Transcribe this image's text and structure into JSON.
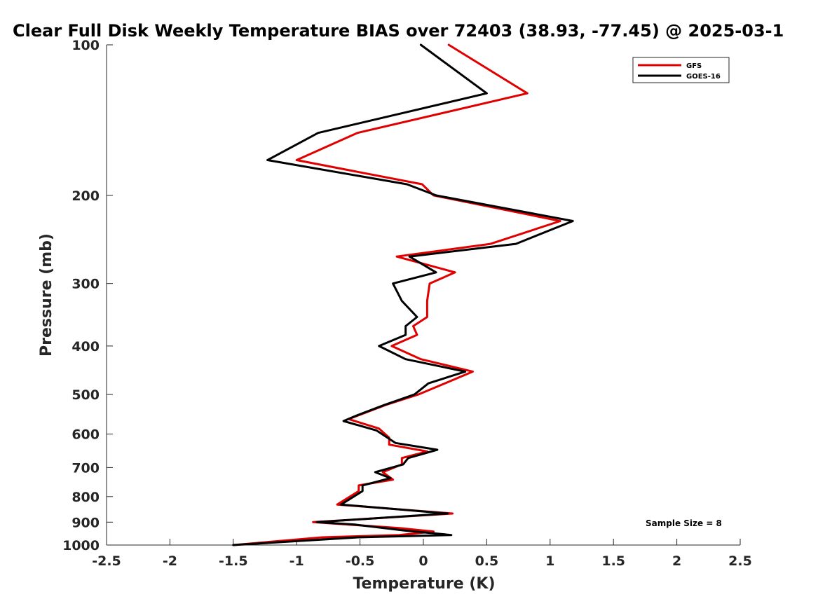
{
  "chart_data": {
    "type": "line",
    "title": "Clear Full Disk Weekly Temperature BIAS over 72403 (38.93, -77.45) @ 2025-03-1",
    "xlabel": "Temperature (K)",
    "ylabel": "Pressure (mb)",
    "xlim": [
      -2.5,
      2.5
    ],
    "ylim": [
      100,
      1000
    ],
    "y_scale": "log",
    "y_reversed": true,
    "x_ticks": [
      "-2.5",
      "-2",
      "-1.5",
      "-1",
      "-0.5",
      "0",
      "0.5",
      "1",
      "1.5",
      "2",
      "2.5"
    ],
    "y_ticks": [
      "100",
      "200",
      "300",
      "400",
      "500",
      "600",
      "700",
      "800",
      "900",
      "1000"
    ],
    "grid": false,
    "legend_position": "top-right",
    "annotation": "Sample Size = 8",
    "series": [
      {
        "name": "GFS",
        "color": "#e00000",
        "points": [
          [
            0.2,
            100
          ],
          [
            0.82,
            125
          ],
          [
            -0.52,
            150
          ],
          [
            -1.0,
            170
          ],
          [
            -0.01,
            190
          ],
          [
            0.08,
            200
          ],
          [
            1.08,
            225
          ],
          [
            0.53,
            250
          ],
          [
            -0.21,
            265
          ],
          [
            0.25,
            285
          ],
          [
            0.05,
            300
          ],
          [
            0.03,
            325
          ],
          [
            0.03,
            350
          ],
          [
            -0.08,
            365
          ],
          [
            -0.05,
            380
          ],
          [
            -0.25,
            400
          ],
          [
            -0.02,
            425
          ],
          [
            0.39,
            450
          ],
          [
            0.17,
            475
          ],
          [
            -0.04,
            500
          ],
          [
            -0.3,
            525
          ],
          [
            -0.59,
            560
          ],
          [
            -0.35,
            585
          ],
          [
            -0.27,
            610
          ],
          [
            -0.27,
            630
          ],
          [
            0.03,
            650
          ],
          [
            -0.17,
            670
          ],
          [
            -0.17,
            690
          ],
          [
            -0.32,
            715
          ],
          [
            -0.24,
            740
          ],
          [
            -0.51,
            760
          ],
          [
            -0.51,
            780
          ],
          [
            -0.68,
            830
          ],
          [
            0.23,
            865
          ],
          [
            -0.87,
            900
          ],
          [
            -0.19,
            925
          ],
          [
            0.08,
            940
          ],
          [
            -0.19,
            955
          ],
          [
            -0.8,
            965
          ],
          [
            -1.5,
            1000
          ]
        ]
      },
      {
        "name": "GOES-16",
        "color": "#000000",
        "points": [
          [
            -0.02,
            100
          ],
          [
            0.5,
            125
          ],
          [
            -0.83,
            150
          ],
          [
            -1.23,
            170
          ],
          [
            -0.13,
            190
          ],
          [
            0.1,
            200
          ],
          [
            1.18,
            225
          ],
          [
            0.73,
            250
          ],
          [
            -0.11,
            265
          ],
          [
            0.1,
            285
          ],
          [
            -0.24,
            300
          ],
          [
            -0.17,
            325
          ],
          [
            -0.05,
            350
          ],
          [
            -0.14,
            365
          ],
          [
            -0.14,
            380
          ],
          [
            -0.35,
            400
          ],
          [
            -0.14,
            425
          ],
          [
            0.33,
            450
          ],
          [
            0.04,
            475
          ],
          [
            -0.07,
            500
          ],
          [
            -0.31,
            525
          ],
          [
            -0.52,
            550
          ],
          [
            -0.63,
            565
          ],
          [
            -0.37,
            590
          ],
          [
            -0.22,
            625
          ],
          [
            0.11,
            645
          ],
          [
            -0.12,
            670
          ],
          [
            -0.16,
            690
          ],
          [
            -0.38,
            715
          ],
          [
            -0.26,
            735
          ],
          [
            -0.48,
            760
          ],
          [
            -0.48,
            780
          ],
          [
            -0.65,
            830
          ],
          [
            0.19,
            865
          ],
          [
            -0.84,
            900
          ],
          [
            -0.54,
            910
          ],
          [
            -0.15,
            935
          ],
          [
            0.22,
            955
          ],
          [
            -0.52,
            965
          ],
          [
            -1.5,
            1000
          ]
        ]
      }
    ]
  }
}
